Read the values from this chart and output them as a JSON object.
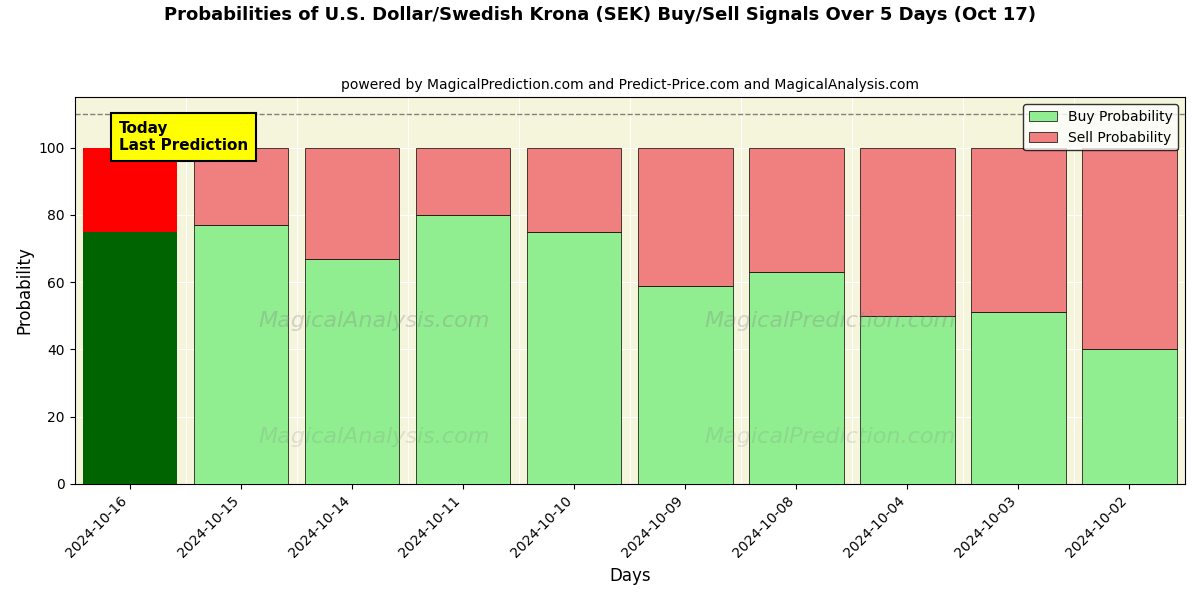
{
  "title": "Probabilities of U.S. Dollar/Swedish Krona (SEK) Buy/Sell Signals Over 5 Days (Oct 17)",
  "subtitle": "powered by MagicalPrediction.com and Predict-Price.com and MagicalAnalysis.com",
  "xlabel": "Days",
  "ylabel": "Probability",
  "categories": [
    "2024-10-16",
    "2024-10-15",
    "2024-10-14",
    "2024-10-11",
    "2024-10-10",
    "2024-10-09",
    "2024-10-08",
    "2024-10-04",
    "2024-10-03",
    "2024-10-02"
  ],
  "buy_values": [
    75,
    77,
    67,
    80,
    75,
    59,
    63,
    50,
    51,
    40
  ],
  "sell_values": [
    25,
    23,
    33,
    20,
    25,
    41,
    37,
    50,
    49,
    60
  ],
  "today_buy_color": "#006400",
  "today_sell_color": "#FF0000",
  "buy_color": "#90EE90",
  "sell_color": "#F08080",
  "today_label_bg": "#FFFF00",
  "dashed_line_y": 110,
  "ylim": [
    0,
    115
  ],
  "yticks": [
    0,
    20,
    40,
    60,
    80,
    100
  ],
  "legend_buy": "Buy Probability",
  "legend_sell": "Sell Probability",
  "bg_color": "#F5F5DC",
  "bar_width": 0.85
}
